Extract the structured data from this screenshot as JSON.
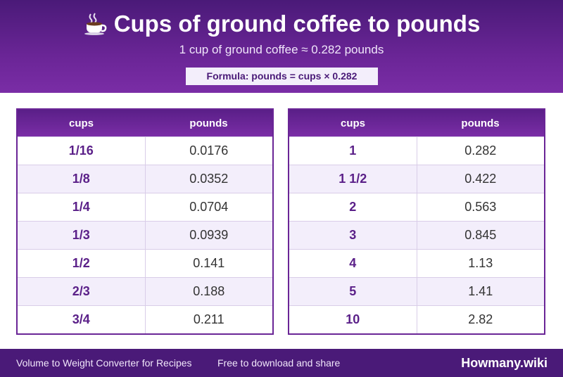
{
  "header": {
    "icon": "coffee-cup-icon",
    "title": "Cups of ground coffee to pounds",
    "subtitle": "1 cup of ground coffee ≈ 0.282 pounds",
    "formula": "Formula: pounds = cups × 0.282"
  },
  "tables": {
    "left": {
      "headers": [
        "cups",
        "pounds"
      ],
      "rows": [
        [
          "1/16",
          "0.0176"
        ],
        [
          "1/8",
          "0.0352"
        ],
        [
          "1/4",
          "0.0704"
        ],
        [
          "1/3",
          "0.0939"
        ],
        [
          "1/2",
          "0.141"
        ],
        [
          "2/3",
          "0.188"
        ],
        [
          "3/4",
          "0.211"
        ]
      ]
    },
    "right": {
      "headers": [
        "cups",
        "pounds"
      ],
      "rows": [
        [
          "1",
          "0.282"
        ],
        [
          "1 1/2",
          "0.422"
        ],
        [
          "2",
          "0.563"
        ],
        [
          "3",
          "0.845"
        ],
        [
          "4",
          "1.13"
        ],
        [
          "5",
          "1.41"
        ],
        [
          "10",
          "2.82"
        ]
      ]
    }
  },
  "footer": {
    "left_text": "Volume to Weight Converter for Recipes",
    "middle_text": "Free to download and share",
    "brand": "Howmany.wiki"
  },
  "colors": {
    "primary": "#6a2596",
    "dark": "#4a1a78",
    "row_alt": "#f3eefb"
  }
}
